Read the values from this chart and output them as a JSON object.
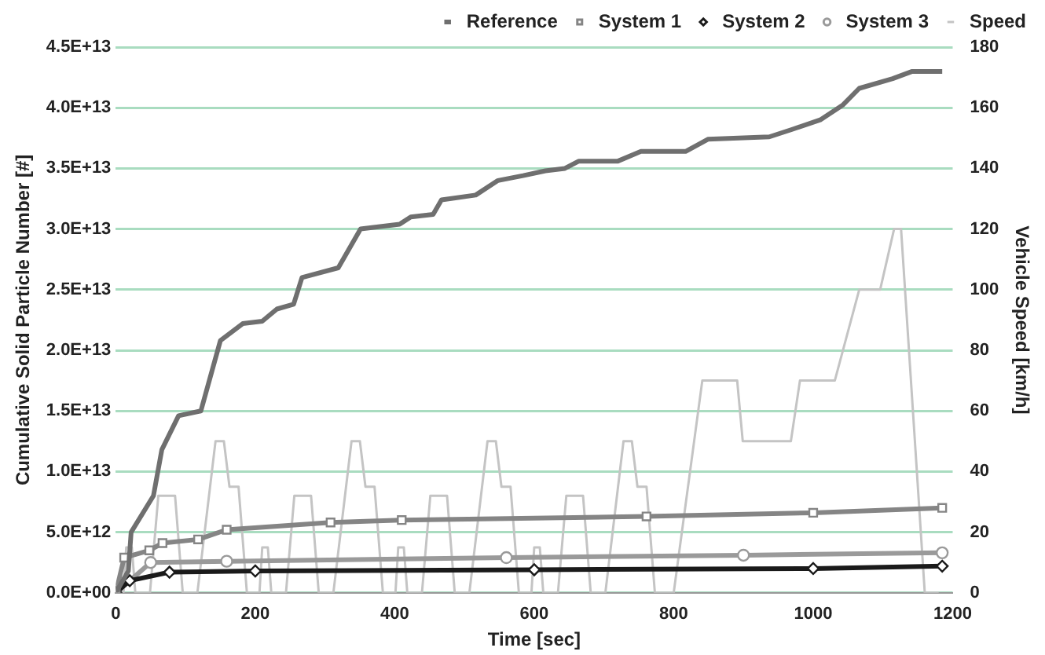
{
  "chart_data": {
    "type": "line",
    "xlabel": "Time [sec]",
    "ylabel": "Cumulative Solid Particle Number [#]",
    "y2label": "Vehicle Speed [km/h]",
    "xlim": [
      0,
      1200
    ],
    "xticks": [
      0,
      200,
      400,
      600,
      800,
      1000,
      1200
    ],
    "ylim": [
      0,
      45000000000000.0
    ],
    "yticks": [
      {
        "value": 0,
        "label": "0.0E+00"
      },
      {
        "value": 5000000000000.0,
        "label": "5.0E+12"
      },
      {
        "value": 10000000000000.0,
        "label": "1.0E+13"
      },
      {
        "value": 15000000000000.0,
        "label": "1.5E+13"
      },
      {
        "value": 20000000000000.0,
        "label": "2.0E+13"
      },
      {
        "value": 25000000000000.0,
        "label": "2.5E+13"
      },
      {
        "value": 30000000000000.0,
        "label": "3.0E+13"
      },
      {
        "value": 35000000000000.0,
        "label": "3.5E+13"
      },
      {
        "value": 40000000000000.0,
        "label": "4.0E+13"
      },
      {
        "value": 45000000000000.0,
        "label": "4.5E+13"
      }
    ],
    "y2lim": [
      0,
      180
    ],
    "y2ticks": [
      0,
      20,
      40,
      60,
      80,
      100,
      120,
      140,
      160,
      180
    ],
    "grid": "y",
    "legend": "top",
    "series": [
      {
        "name": "Reference",
        "color": "#6f6f6f",
        "marker": "none",
        "x": [
          0,
          18,
          22,
          54,
          66,
          90,
          122,
          150,
          182,
          210,
          231,
          255,
          267,
          319,
          351,
          407,
          423,
          455,
          467,
          516,
          548,
          584,
          616,
          644,
          664,
          720,
          753,
          817,
          849,
          937,
          969,
          1010,
          1042,
          1066,
          1114,
          1142,
          1185
        ],
        "values": [
          0,
          1800000000000.0,
          5000000000000.0,
          8000000000000.0,
          11800000000000.0,
          14600000000000.0,
          15000000000000.0,
          20800000000000.0,
          22200000000000.0,
          22400000000000.0,
          23400000000000.0,
          23800000000000.0,
          26000000000000.0,
          26800000000000.0,
          30000000000000.0,
          30400000000000.0,
          31000000000000.0,
          31200000000000.0,
          32400000000000.0,
          32800000000000.0,
          34000000000000.0,
          34400000000000.0,
          34800000000000.0,
          35000000000000.0,
          35600000000000.0,
          35600000000000.0,
          36400000000000.0,
          36400000000000.0,
          37400000000000.0,
          37600000000000.0,
          38200000000000.0,
          39000000000000.0,
          40200000000000.0,
          41600000000000.0,
          42400000000000.0,
          43000000000000.0,
          43000000000000.0
        ]
      },
      {
        "name": "System 1",
        "color": "#858585",
        "marker": "square",
        "x": [
          0,
          12,
          48,
          67,
          118,
          159,
          308,
          410,
          761,
          1000,
          1185
        ],
        "values": [
          0,
          2900000000000.0,
          3500000000000.0,
          4100000000000.0,
          4400000000000.0,
          5200000000000.0,
          5800000000000.0,
          6000000000000.0,
          6300000000000.0,
          6600000000000.0,
          7000000000000.0
        ]
      },
      {
        "name": "System 2",
        "color": "#1a1a1a",
        "marker": "diamond",
        "x": [
          0,
          20,
          77,
          200,
          600,
          1000,
          1185
        ],
        "values": [
          0,
          1000000000000.0,
          1700000000000.0,
          1800000000000.0,
          1900000000000.0,
          2000000000000.0,
          2200000000000.0
        ]
      },
      {
        "name": "System 3",
        "color": "#9a9a9a",
        "marker": "circle",
        "x": [
          0,
          50,
          159,
          560,
          900,
          1185
        ],
        "values": [
          0,
          2500000000000.0,
          2600000000000.0,
          2900000000000.0,
          3100000000000.0,
          3300000000000.0
        ]
      },
      {
        "name": "Speed",
        "color": "#c4c4c4",
        "marker": "none",
        "axis": "y2",
        "x": [
          0,
          11,
          15,
          23,
          28,
          49,
          61,
          85,
          96,
          117,
          143,
          155,
          163,
          176,
          188,
          206,
          210,
          218,
          223,
          244,
          256,
          280,
          291,
          312,
          338,
          350,
          358,
          371,
          383,
          401,
          405,
          413,
          418,
          439,
          451,
          475,
          486,
          507,
          533,
          545,
          553,
          566,
          578,
          596,
          600,
          608,
          613,
          634,
          646,
          670,
          681,
          702,
          728,
          740,
          748,
          761,
          773,
          800,
          841,
          891,
          899,
          968,
          981,
          1031,
          1066,
          1096,
          1116,
          1126,
          1160,
          1180
        ],
        "values": [
          0,
          0,
          15,
          15,
          0,
          0,
          32,
          32,
          0,
          0,
          50,
          50,
          35,
          35,
          0,
          0,
          15,
          15,
          0,
          0,
          32,
          32,
          0,
          0,
          50,
          50,
          35,
          35,
          0,
          0,
          15,
          15,
          0,
          0,
          32,
          32,
          0,
          0,
          50,
          50,
          35,
          35,
          0,
          0,
          15,
          15,
          0,
          0,
          32,
          32,
          0,
          0,
          50,
          50,
          35,
          35,
          0,
          0,
          70,
          70,
          50,
          50,
          70,
          70,
          100,
          100,
          120,
          120,
          0,
          0
        ]
      }
    ]
  }
}
